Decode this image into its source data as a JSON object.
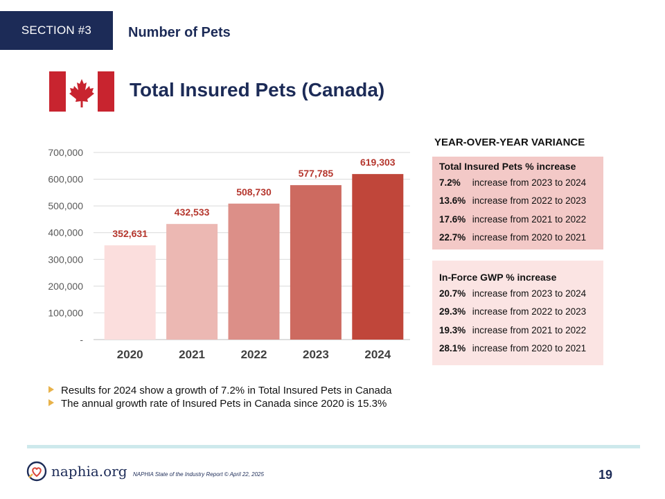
{
  "header": {
    "section_tag": "SECTION #3",
    "section_title": "Number of Pets"
  },
  "page_heading": "Total Insured Pets (Canada)",
  "chart_data": {
    "type": "bar",
    "categories": [
      "2020",
      "2021",
      "2022",
      "2023",
      "2024"
    ],
    "values": [
      352631,
      432533,
      508730,
      577785,
      619303
    ],
    "value_labels": [
      "352,631",
      "432,533",
      "508,730",
      "577,785",
      "619,303"
    ],
    "y_ticks": [
      0,
      100000,
      200000,
      300000,
      400000,
      500000,
      600000,
      700000
    ],
    "y_tick_labels": [
      "-",
      "100,000",
      "200,000",
      "300,000",
      "400,000",
      "500,000",
      "600,000",
      "700,000"
    ],
    "ylim": [
      0,
      700000
    ],
    "bar_colors": [
      "#fbdedd",
      "#ecb8b3",
      "#dc8f88",
      "#cd6a60",
      "#c0463a"
    ],
    "grid": true,
    "legend": false
  },
  "variance": {
    "heading": "YEAR-OVER-YEAR VARIANCE",
    "insured_pets": {
      "title": "Total Insured Pets % increase",
      "rows": [
        {
          "pct": "7.2%",
          "text": "increase from 2023 to 2024"
        },
        {
          "pct": "13.6%",
          "text": "increase from 2022 to 2023"
        },
        {
          "pct": "17.6%",
          "text": "increase from 2021 to 2022"
        },
        {
          "pct": "22.7%",
          "text": "increase from 2020 to 2021"
        }
      ]
    },
    "gwp": {
      "title": "In-Force GWP % increase",
      "rows": [
        {
          "pct": "20.7%",
          "text": "increase from 2023 to 2024"
        },
        {
          "pct": "29.3%",
          "text": "increase from 2022 to 2023"
        },
        {
          "pct": "19.3%",
          "text": "increase from 2021 to 2022"
        },
        {
          "pct": "28.1%",
          "text": "increase from 2020 to 2021"
        }
      ]
    }
  },
  "bullets": [
    "Results for 2024 show a growth of 7.2% in Total Insured Pets in Canada",
    "The annual growth rate of Insured Pets in Canada since 2020 is 15.3%"
  ],
  "footer": {
    "logo_text": "naphia.org",
    "note": "NAPHIA State of the Industry Report © April 22, 2025",
    "page_number": "19"
  },
  "colors": {
    "navy": "#1c2b57",
    "flag_red": "#c8242f",
    "value_label": "#b5362d"
  }
}
